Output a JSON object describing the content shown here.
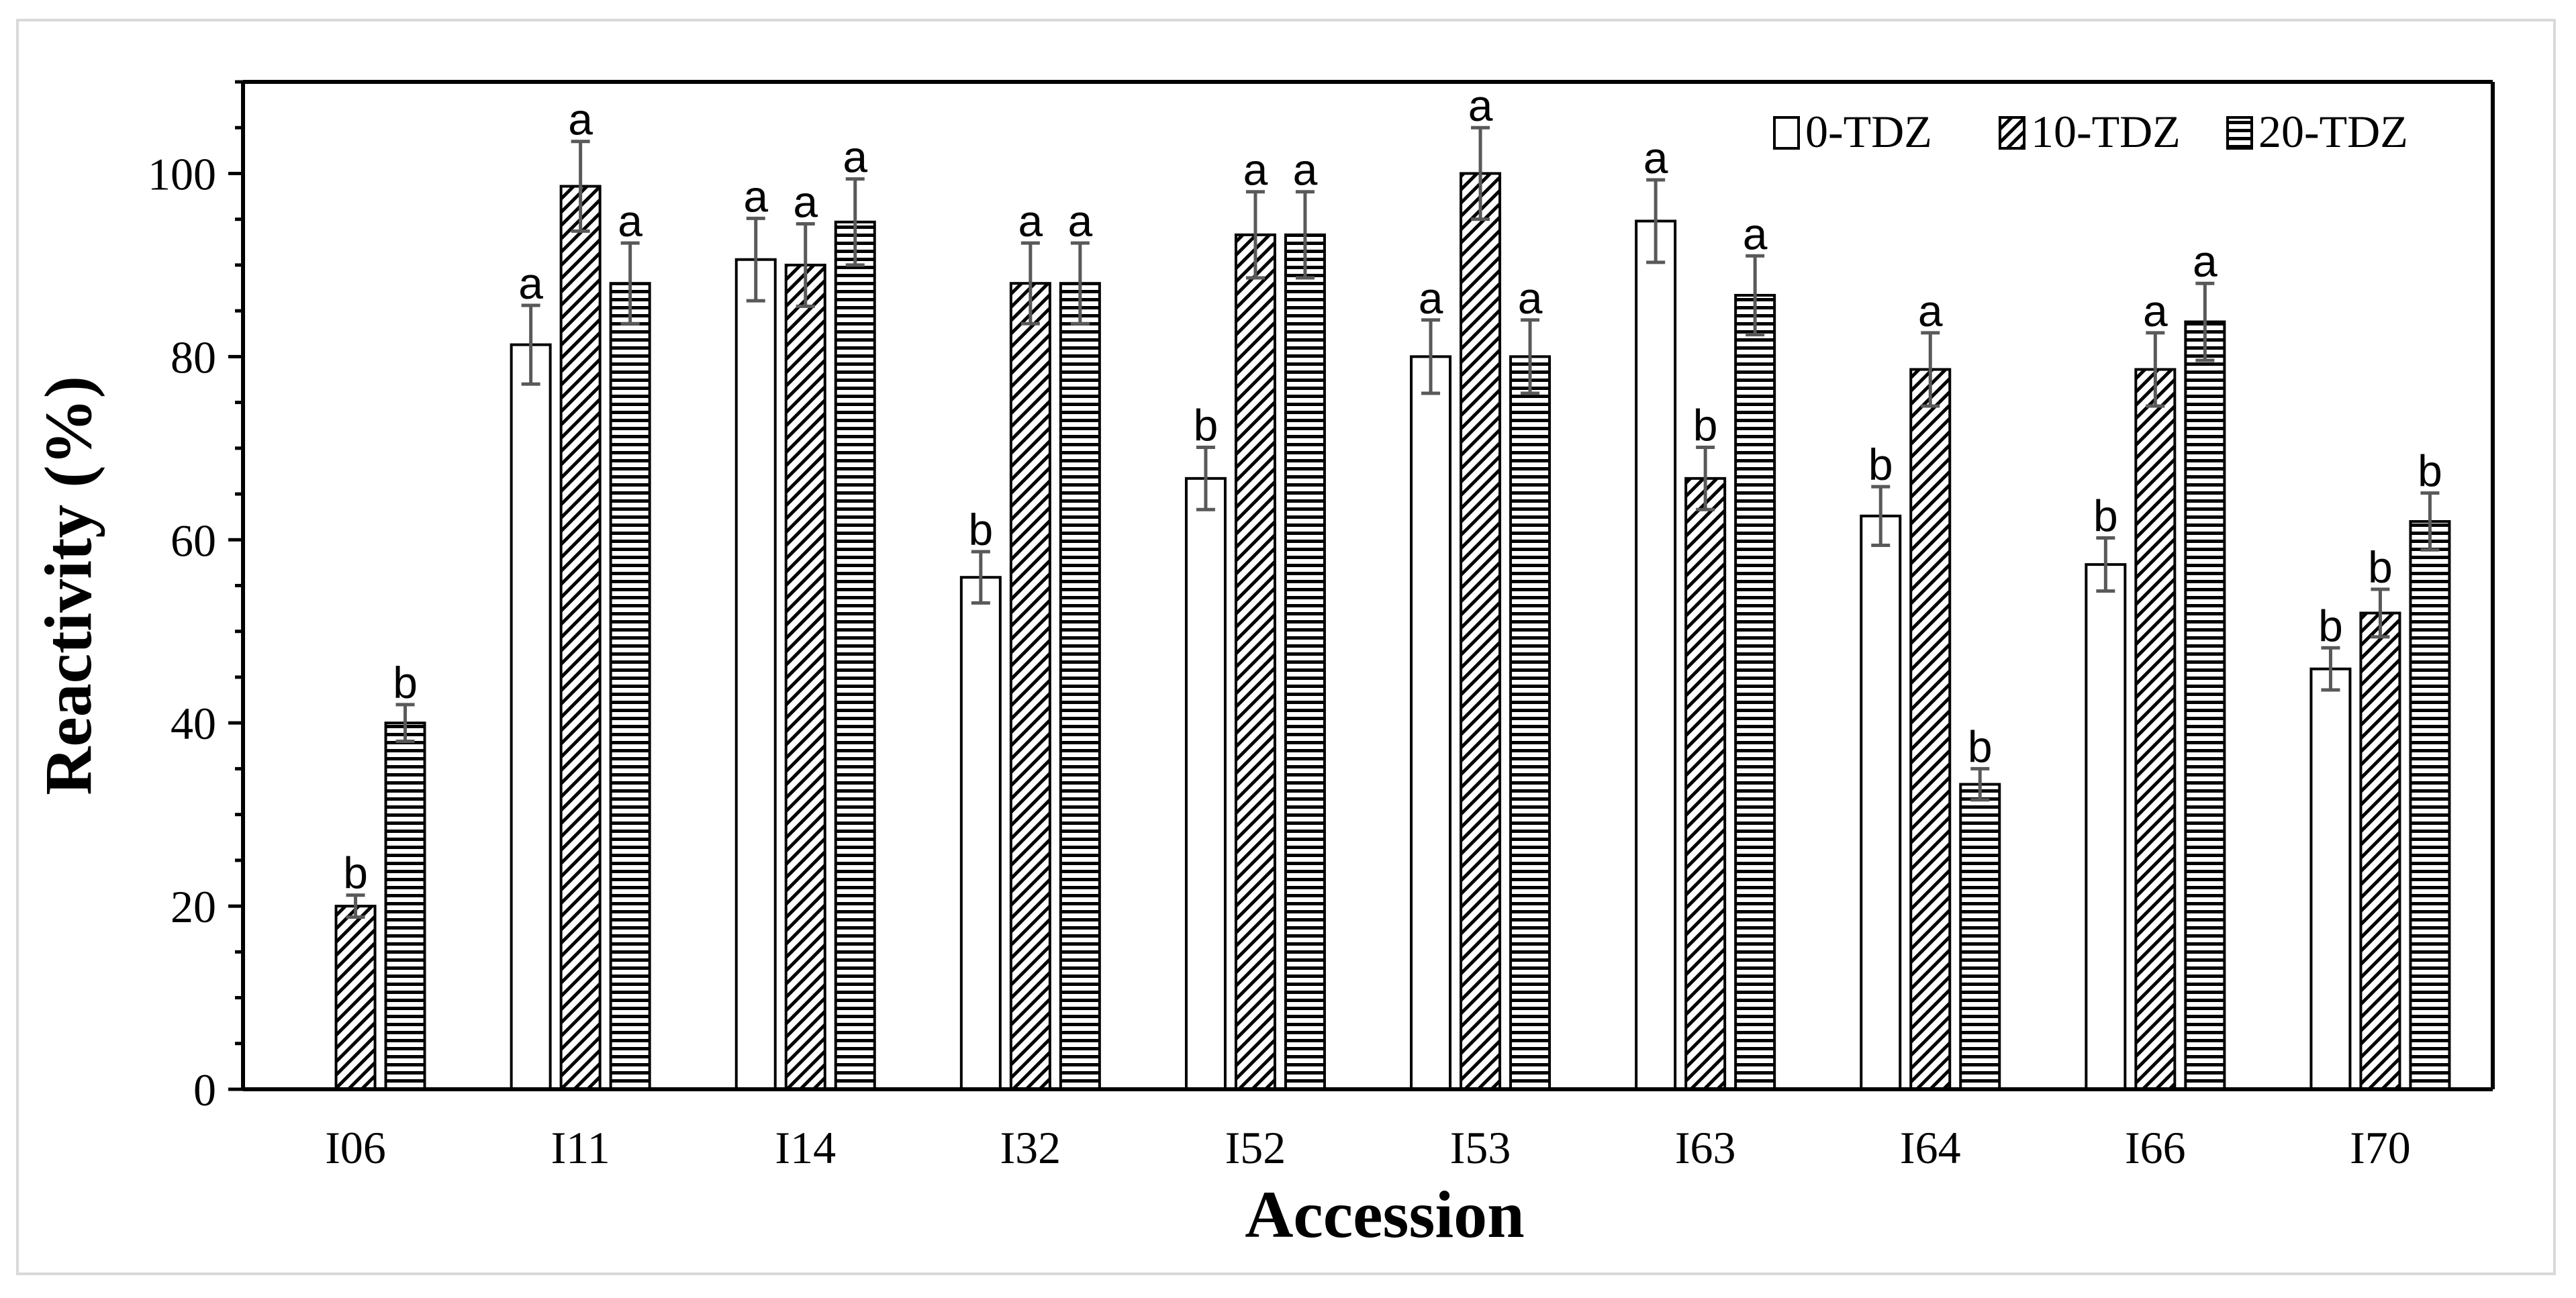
{
  "chart_data": {
    "type": "bar",
    "xlabel": "Accession",
    "ylabel": "Reactivity (%)",
    "ylim": [
      0,
      110
    ],
    "yticks": [
      0,
      20,
      40,
      60,
      80,
      100
    ],
    "categories": [
      "I06",
      "I11",
      "I14",
      "I32",
      "I52",
      "I53",
      "I63",
      "I64",
      "I66",
      "I70"
    ],
    "legend_position": "top-right",
    "series": [
      {
        "name": "0-TDZ",
        "pattern": "blank",
        "values": [
          0,
          81.3,
          90.6,
          55.9,
          66.7,
          80.0,
          94.8,
          62.6,
          57.3,
          45.9
        ],
        "errors": [
          0,
          4.3,
          4.5,
          2.8,
          3.4,
          4.0,
          4.5,
          3.2,
          2.9,
          2.3
        ],
        "letters": [
          "",
          "a",
          "a",
          "b",
          "b",
          "a",
          "a",
          "b",
          "b",
          "b"
        ]
      },
      {
        "name": "10-TDZ",
        "pattern": "diagonal",
        "values": [
          20.0,
          98.6,
          90.0,
          88.0,
          93.3,
          100.0,
          66.7,
          78.6,
          78.6,
          52.0
        ],
        "errors": [
          1.2,
          4.9,
          4.5,
          4.4,
          4.7,
          5.0,
          3.4,
          4.0,
          4.0,
          2.6
        ],
        "letters": [
          "b",
          "a",
          "a",
          "a",
          "a",
          "a",
          "b",
          "a",
          "a",
          "b"
        ]
      },
      {
        "name": "20-TDZ",
        "pattern": "horizontal",
        "values": [
          40.0,
          88.0,
          94.7,
          88.0,
          93.3,
          80.0,
          86.7,
          33.3,
          83.8,
          62.0
        ],
        "errors": [
          2.0,
          4.4,
          4.7,
          4.4,
          4.7,
          4.0,
          4.3,
          1.7,
          4.2,
          3.1
        ],
        "letters": [
          "b",
          "a",
          "a",
          "a",
          "a",
          "a",
          "a",
          "b",
          "a",
          "b"
        ]
      }
    ]
  }
}
